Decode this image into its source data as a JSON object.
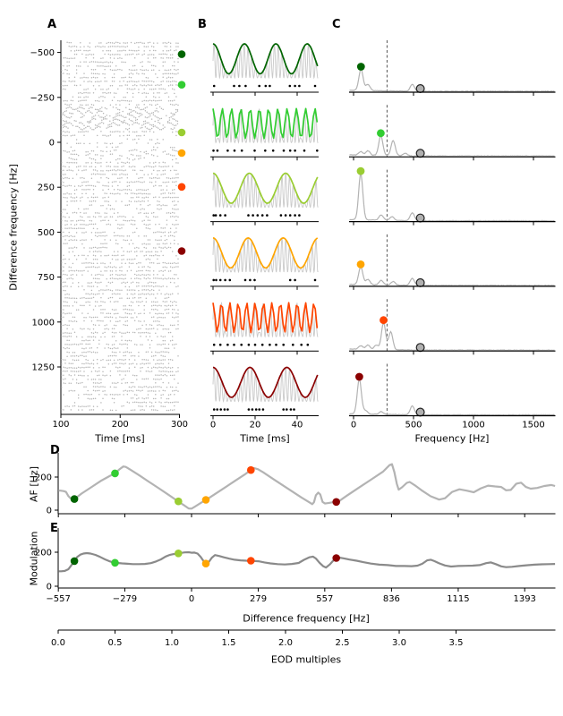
{
  "colors": {
    "raster_dots": "#b6b6b6",
    "carrier_gray": "#c9c9c9",
    "spectrum_gray": "#b3b3b3",
    "d_curve_gray": "#b3b3b3",
    "e_curve_gray": "#8a8a8a",
    "eod_circle_fill": "#b0b0b0",
    "axis_black": "#000000",
    "dashed_line": "#444444"
  },
  "conditions": [
    {
      "df_hz": -490,
      "color": "#006400",
      "color_name": "darkgreen",
      "af_hz": 67,
      "modulation": 148,
      "b_env_freq_hz": 67,
      "c_peaks_hz_amp": [
        [
          62,
          24
        ],
        [
          120,
          7
        ],
        [
          490,
          8
        ]
      ],
      "spike_times_ms": [
        0.5,
        10,
        12.5,
        15.5,
        22,
        25,
        27,
        36.5,
        39,
        41,
        48.5
      ]
    },
    {
      "df_hz": -320,
      "color": "#32cd32",
      "color_name": "limegreen",
      "af_hz": 222,
      "modulation": 138,
      "b_env_freq_hz": 227,
      "c_peaks_hz_amp": [
        [
          227,
          22
        ],
        [
          330,
          17
        ],
        [
          60,
          4
        ],
        [
          120,
          5
        ],
        [
          430,
          3
        ]
      ],
      "spike_times_ms": [
        0.2,
        2.1,
        7,
        10.2,
        13.7,
        19.8,
        24.8,
        28.6,
        33.6,
        36.7,
        39,
        43.4,
        49.5
      ]
    },
    {
      "df_hz": -55,
      "color": "#9acd32",
      "color_name": "yellowgreen",
      "af_hz": 53,
      "modulation": 193,
      "b_env_freq_hz": 58,
      "c_peaks_hz_amp": [
        [
          60,
          52
        ],
        [
          230,
          6
        ],
        [
          320,
          4
        ],
        [
          490,
          9
        ]
      ],
      "spike_times_ms": [
        0.3,
        1.3,
        3.5,
        5.8,
        16.8,
        19,
        21.2,
        23.5,
        25.7,
        32.3,
        34.5,
        36.7,
        39,
        41
      ]
    },
    {
      "df_hz": 60,
      "color": "#ffa500",
      "color_name": "orange",
      "af_hz": 62,
      "modulation": 133,
      "b_env_freq_hz": 60,
      "c_peaks_hz_amp": [
        [
          60,
          20
        ],
        [
          120,
          6
        ],
        [
          230,
          5
        ],
        [
          330,
          4
        ],
        [
          490,
          8
        ]
      ],
      "spike_times_ms": [
        0.3,
        1.5,
        3.5,
        5.8,
        8,
        15.3,
        17.6,
        19.8,
        36.7,
        39,
        48.5
      ]
    },
    {
      "df_hz": 248,
      "color": "#ff4500",
      "color_name": "orangered",
      "af_hz": 242,
      "modulation": 150,
      "b_env_freq_hz": 250,
      "c_peaks_hz_amp": [
        [
          250,
          30
        ],
        [
          310,
          20
        ],
        [
          60,
          4
        ],
        [
          120,
          5
        ],
        [
          190,
          5
        ]
      ],
      "spike_times_ms": [
        0.5,
        3.5,
        7,
        10,
        13.5,
        17,
        20,
        23.5,
        27,
        30,
        33.5,
        38,
        42,
        45
      ]
    },
    {
      "df_hz": 605,
      "color": "#8b0000",
      "color_name": "darkred",
      "af_hz": 50,
      "modulation": 166,
      "b_env_freq_hz": 57,
      "c_peaks_hz_amp": [
        [
          48,
          39
        ],
        [
          100,
          4
        ],
        [
          230,
          3
        ],
        [
          490,
          10
        ]
      ],
      "spike_times_ms": [
        0.5,
        2,
        3.7,
        5.5,
        7,
        17,
        18.7,
        20.5,
        22,
        23.8,
        33.5,
        35,
        37,
        38.5
      ]
    }
  ],
  "chart_data": [
    {
      "id": "panel_a",
      "type": "raster",
      "label": "A",
      "xlabel": "Time [ms]",
      "ylabel": "Difference frequency [Hz]",
      "xlim": [
        100,
        300
      ],
      "ylim": [
        -570,
        1475
      ],
      "xticks": [
        100,
        200,
        300
      ],
      "xtick_labels": [
        "100",
        "200",
        "300"
      ],
      "yticks": [
        -500,
        -250,
        0,
        250,
        500,
        750,
        1000,
        1250
      ],
      "ytick_labels": [
        "−500",
        "−250",
        "0",
        "250",
        "500",
        "750",
        "1000",
        "1250"
      ],
      "n_trial_rows": 96,
      "marker_df_hz": [
        -490,
        -320,
        -55,
        60,
        248,
        605
      ]
    },
    {
      "id": "panel_b",
      "type": "line",
      "label": "B",
      "xlabel": "Time [ms]",
      "xlim": [
        0,
        50
      ],
      "xticks": [
        0,
        20,
        40
      ],
      "xtick_labels": [
        "0",
        "20",
        "40"
      ],
      "carrier_freq_hz": 557,
      "note": "six AM-beat waveforms; envelope freq, color and spike rasters per row come from conditions[]"
    },
    {
      "id": "panel_c",
      "type": "line",
      "label": "C",
      "xlabel": "Frequency [Hz]",
      "xlim": [
        0,
        1680
      ],
      "xticks": [
        0,
        500,
        1000,
        1500
      ],
      "xtick_labels": [
        "0",
        "500",
        "1000",
        "1500"
      ],
      "dashed_line_hz": 279,
      "eod_marker_hz": 557,
      "note": "six response power spectra; peak positions/heights per row come from conditions[].c_peaks_hz_amp"
    },
    {
      "id": "panel_d",
      "type": "line",
      "label": "D",
      "ylabel": "AF [Hz]",
      "yticks": [
        0,
        200
      ],
      "ytick_labels": [
        "0",
        "200"
      ],
      "curve_df_af": [
        [
          -557,
          118
        ],
        [
          -548,
          118
        ],
        [
          -535,
          115
        ],
        [
          -525,
          110
        ],
        [
          -515,
          85
        ],
        [
          -505,
          70
        ],
        [
          -495,
          66
        ],
        [
          -490,
          67
        ],
        [
          -478,
          80
        ],
        [
          -460,
          100
        ],
        [
          -420,
          138
        ],
        [
          -380,
          176
        ],
        [
          -340,
          208
        ],
        [
          -320,
          222
        ],
        [
          -300,
          248
        ],
        [
          -285,
          264
        ],
        [
          -275,
          261
        ],
        [
          -260,
          248
        ],
        [
          -220,
          212
        ],
        [
          -180,
          173
        ],
        [
          -140,
          135
        ],
        [
          -100,
          96
        ],
        [
          -60,
          57
        ],
        [
          -30,
          28
        ],
        [
          -12,
          10
        ],
        [
          0,
          9
        ],
        [
          15,
          22
        ],
        [
          40,
          45
        ],
        [
          62,
          63
        ],
        [
          100,
          99
        ],
        [
          140,
          137
        ],
        [
          180,
          175
        ],
        [
          220,
          213
        ],
        [
          248,
          242
        ],
        [
          262,
          254
        ],
        [
          278,
          247
        ],
        [
          300,
          228
        ],
        [
          340,
          190
        ],
        [
          380,
          152
        ],
        [
          420,
          114
        ],
        [
          460,
          76
        ],
        [
          490,
          50
        ],
        [
          505,
          36
        ],
        [
          512,
          48
        ],
        [
          520,
          90
        ],
        [
          530,
          106
        ],
        [
          538,
          95
        ],
        [
          548,
          50
        ],
        [
          558,
          40
        ],
        [
          575,
          44
        ],
        [
          592,
          48
        ],
        [
          605,
          51
        ],
        [
          620,
          58
        ],
        [
          650,
          88
        ],
        [
          700,
          136
        ],
        [
          750,
          184
        ],
        [
          800,
          232
        ],
        [
          828,
          272
        ],
        [
          838,
          278
        ],
        [
          848,
          230
        ],
        [
          858,
          160
        ],
        [
          866,
          124
        ],
        [
          880,
          138
        ],
        [
          900,
          165
        ],
        [
          912,
          170
        ],
        [
          932,
          152
        ],
        [
          962,
          120
        ],
        [
          1000,
          84
        ],
        [
          1035,
          64
        ],
        [
          1060,
          72
        ],
        [
          1090,
          110
        ],
        [
          1120,
          126
        ],
        [
          1150,
          118
        ],
        [
          1180,
          108
        ],
        [
          1210,
          132
        ],
        [
          1240,
          148
        ],
        [
          1270,
          143
        ],
        [
          1295,
          140
        ],
        [
          1315,
          120
        ],
        [
          1335,
          122
        ],
        [
          1358,
          160
        ],
        [
          1378,
          166
        ],
        [
          1398,
          140
        ],
        [
          1418,
          130
        ],
        [
          1445,
          134
        ],
        [
          1475,
          146
        ],
        [
          1505,
          152
        ],
        [
          1520,
          146
        ]
      ]
    },
    {
      "id": "panel_e",
      "type": "line",
      "label": "E",
      "ylabel": "Modulation",
      "xlabel": "Difference frequency [Hz]",
      "yticks": [
        0,
        200
      ],
      "ytick_labels": [
        "0",
        "200"
      ],
      "xticks": [
        -557,
        -279,
        0,
        279,
        557,
        836,
        1115,
        1393
      ],
      "xtick_labels": [
        "−557",
        "−279",
        "0",
        "279",
        "557",
        "836",
        "1115",
        "1393"
      ],
      "curve_df_mod": [
        [
          -557,
          88
        ],
        [
          -545,
          88
        ],
        [
          -530,
          90
        ],
        [
          -515,
          100
        ],
        [
          -500,
          128
        ],
        [
          -490,
          148
        ],
        [
          -478,
          172
        ],
        [
          -465,
          186
        ],
        [
          -452,
          192
        ],
        [
          -438,
          195
        ],
        [
          -422,
          192
        ],
        [
          -402,
          184
        ],
        [
          -382,
          172
        ],
        [
          -362,
          158
        ],
        [
          -345,
          148
        ],
        [
          -330,
          141
        ],
        [
          -310,
          137
        ],
        [
          -290,
          134
        ],
        [
          -268,
          132
        ],
        [
          -245,
          130
        ],
        [
          -220,
          130
        ],
        [
          -195,
          131
        ],
        [
          -170,
          136
        ],
        [
          -148,
          146
        ],
        [
          -128,
          158
        ],
        [
          -108,
          175
        ],
        [
          -90,
          185
        ],
        [
          -75,
          189
        ],
        [
          -60,
          192
        ],
        [
          -45,
          196
        ],
        [
          -28,
          199
        ],
        [
          -12,
          200
        ],
        [
          0,
          197
        ],
        [
          12,
          198
        ],
        [
          25,
          192
        ],
        [
          38,
          172
        ],
        [
          50,
          148
        ],
        [
          60,
          133
        ],
        [
          72,
          142
        ],
        [
          85,
          168
        ],
        [
          98,
          183
        ],
        [
          115,
          178
        ],
        [
          135,
          170
        ],
        [
          158,
          162
        ],
        [
          180,
          156
        ],
        [
          205,
          152
        ],
        [
          230,
          150
        ],
        [
          255,
          149
        ],
        [
          280,
          147
        ],
        [
          305,
          140
        ],
        [
          330,
          134
        ],
        [
          360,
          130
        ],
        [
          390,
          128
        ],
        [
          420,
          131
        ],
        [
          448,
          137
        ],
        [
          470,
          155
        ],
        [
          492,
          170
        ],
        [
          508,
          174
        ],
        [
          520,
          163
        ],
        [
          535,
          138
        ],
        [
          550,
          118
        ],
        [
          562,
          110
        ],
        [
          578,
          128
        ],
        [
          592,
          150
        ],
        [
          605,
          165
        ],
        [
          618,
          168
        ],
        [
          635,
          164
        ],
        [
          660,
          157
        ],
        [
          690,
          150
        ],
        [
          720,
          141
        ],
        [
          750,
          133
        ],
        [
          785,
          127
        ],
        [
          820,
          124
        ],
        [
          855,
          119
        ],
        [
          890,
          119
        ],
        [
          920,
          118
        ],
        [
          945,
          121
        ],
        [
          965,
          132
        ],
        [
          985,
          152
        ],
        [
          1000,
          156
        ],
        [
          1015,
          148
        ],
        [
          1035,
          135
        ],
        [
          1060,
          122
        ],
        [
          1085,
          116
        ],
        [
          1115,
          119
        ],
        [
          1145,
          120
        ],
        [
          1175,
          121
        ],
        [
          1205,
          124
        ],
        [
          1232,
          136
        ],
        [
          1252,
          140
        ],
        [
          1272,
          130
        ],
        [
          1295,
          117
        ],
        [
          1315,
          112
        ],
        [
          1340,
          114
        ],
        [
          1370,
          119
        ],
        [
          1400,
          123
        ],
        [
          1435,
          127
        ],
        [
          1465,
          129
        ],
        [
          1495,
          130
        ],
        [
          1520,
          131
        ]
      ]
    },
    {
      "id": "eod_axis",
      "type": "axis",
      "xlabel": "EOD multiples",
      "xticks": [
        0.0,
        0.5,
        1.0,
        1.5,
        2.0,
        2.5,
        3.0,
        3.5
      ],
      "xtick_labels": [
        "0.0",
        "0.5",
        "1.0",
        "1.5",
        "2.0",
        "2.5",
        "3.0",
        "3.5"
      ]
    }
  ]
}
